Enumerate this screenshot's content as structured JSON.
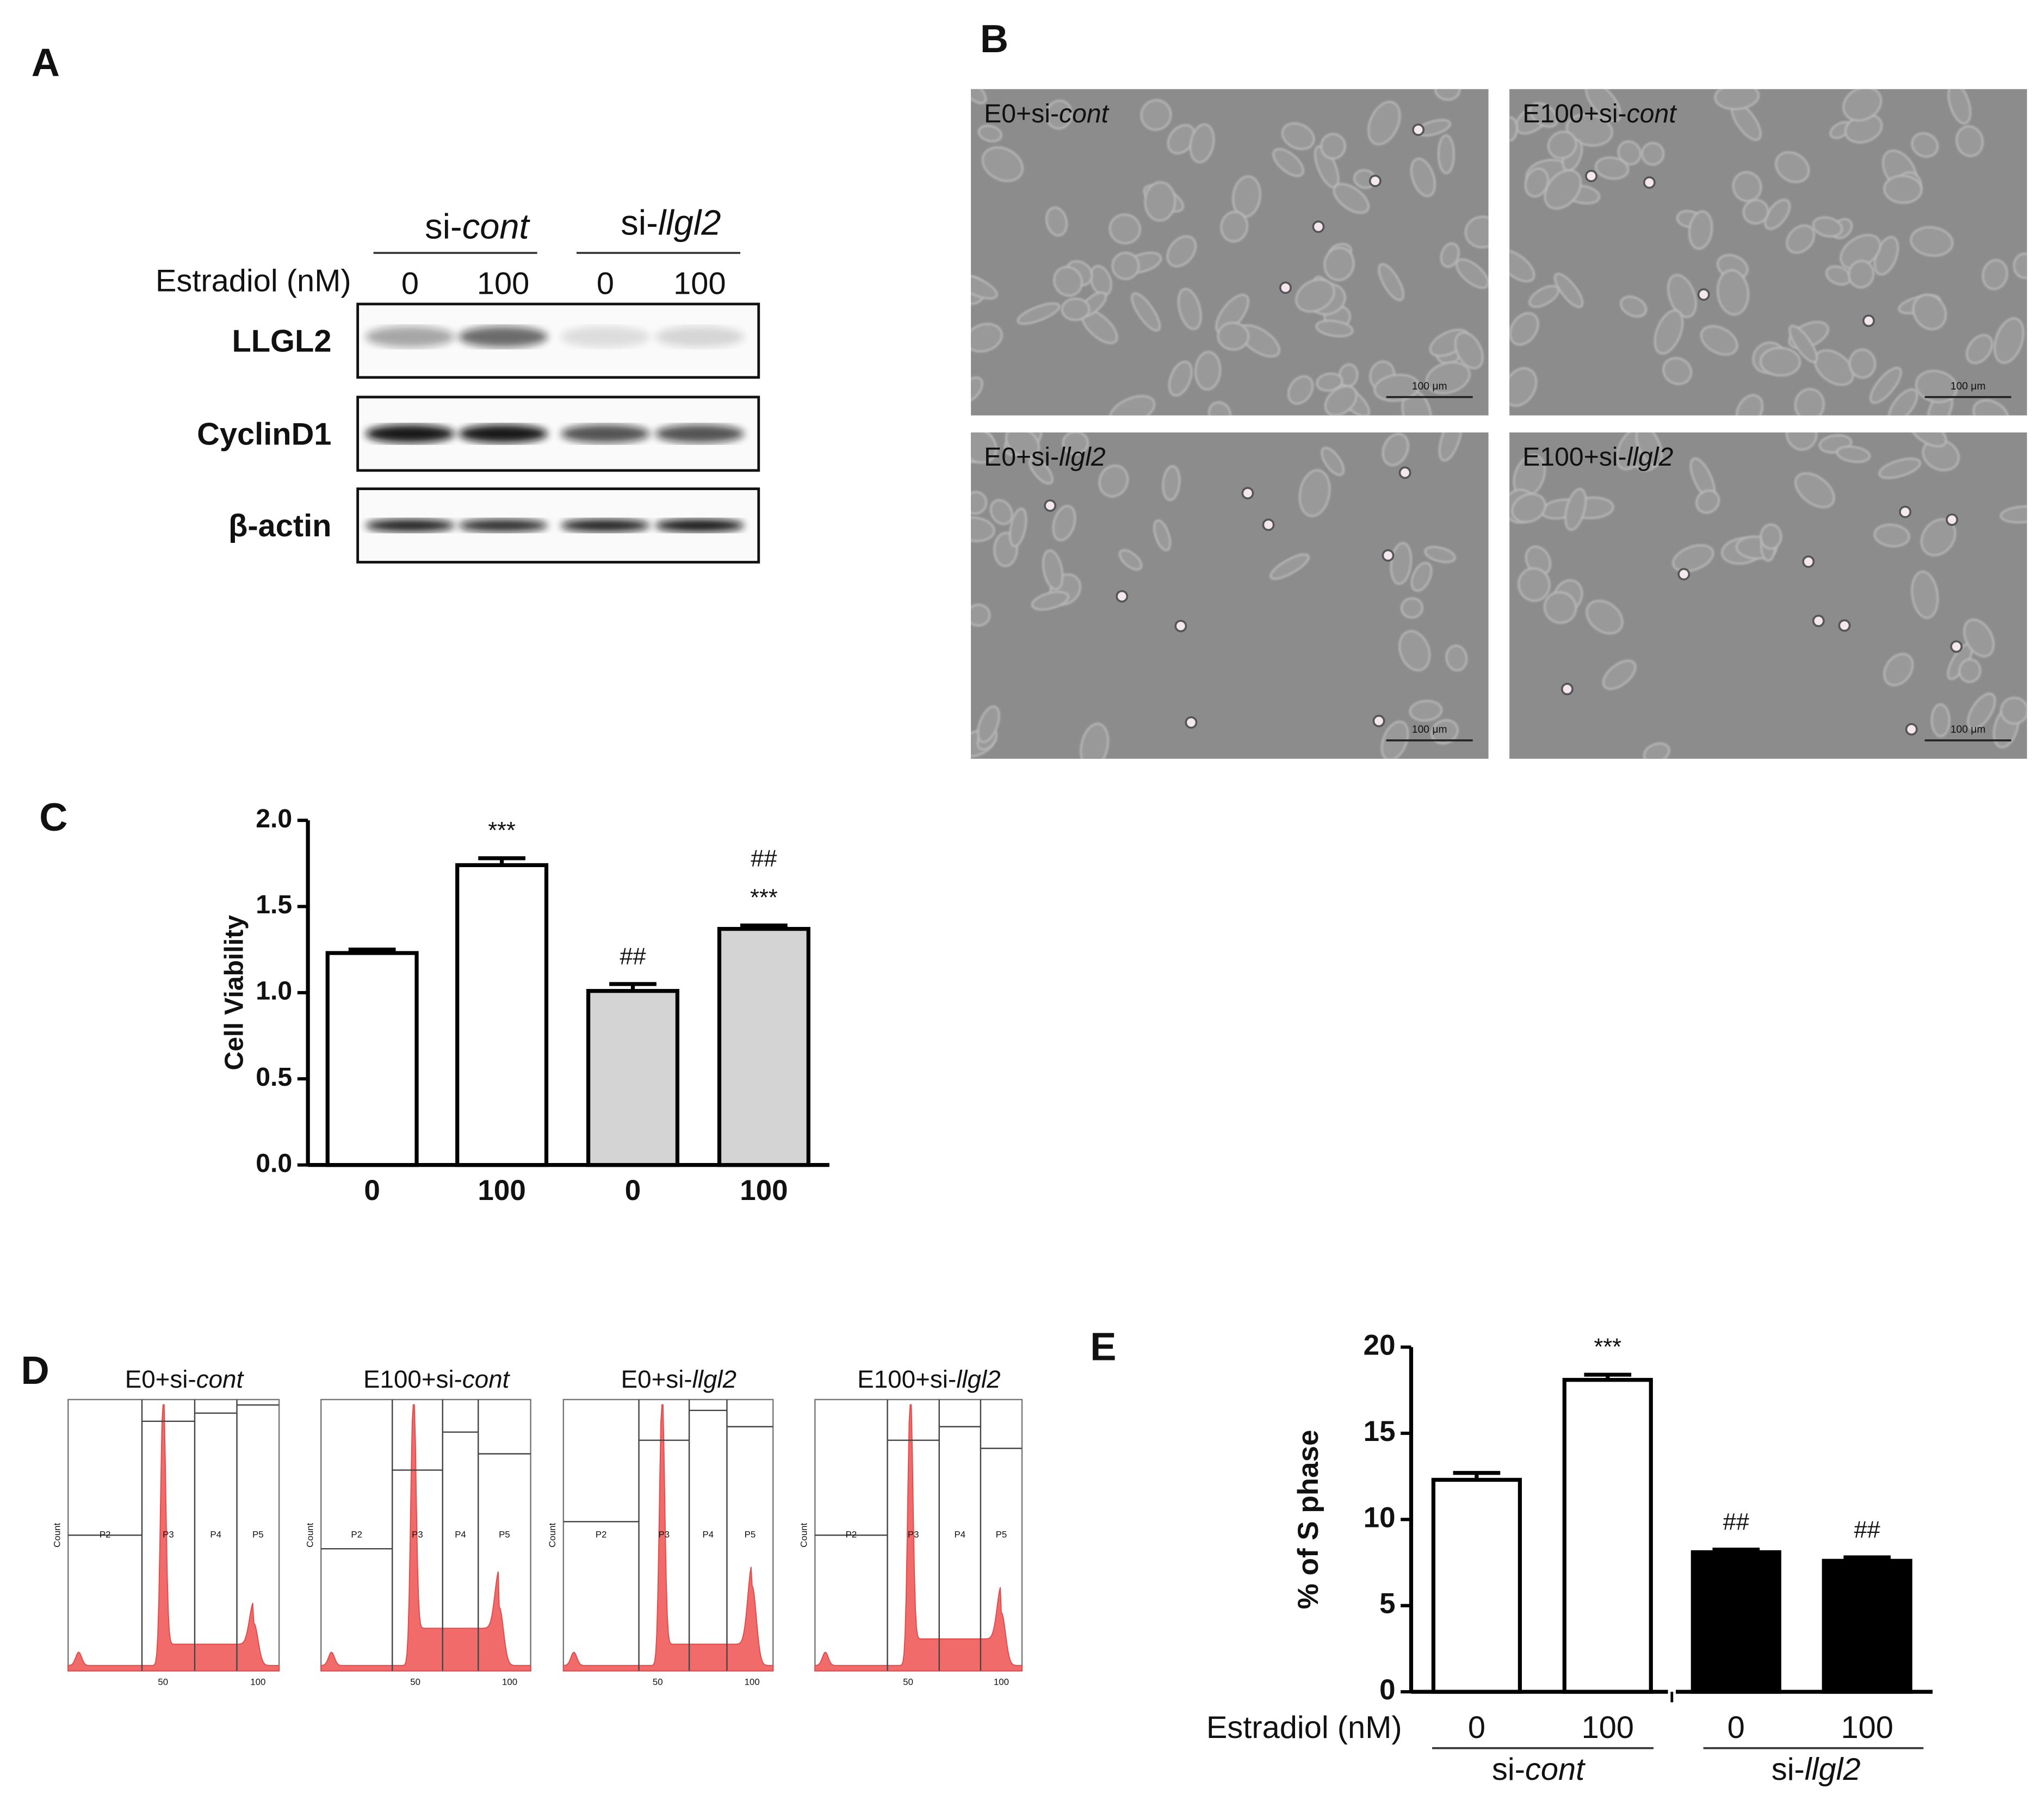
{
  "panel_labels": [
    "A",
    "B",
    "C",
    "D",
    "E"
  ],
  "conditions": [
    {
      "text": "E0+si-",
      "italic": "cont"
    },
    {
      "text": "E100+si-",
      "italic": "cont"
    },
    {
      "text": "E0+si-",
      "italic": "llgl2"
    },
    {
      "text": "E100+si-",
      "italic": "llgl2"
    }
  ],
  "groups": [
    {
      "text": "si-",
      "italic": "cont"
    },
    {
      "text": "si-",
      "italic": "llgl2"
    }
  ],
  "western_blot": {
    "treatment_label": "Estradiol (nM)",
    "doses": [
      "0",
      "100",
      "0",
      "100"
    ],
    "rows": [
      "LLGL2",
      "CyclinD1",
      "β-actin"
    ]
  },
  "scale_bar": "100 μm",
  "flow": {
    "gates": [
      "P2",
      "P3",
      "P4",
      "P5"
    ],
    "y_label": "Count",
    "x_ticks": [
      "50",
      "100"
    ]
  },
  "chart_data": [
    {
      "type": "bar",
      "y_label": "Cell Viability",
      "categories": [
        "0",
        "100",
        "0",
        "100"
      ],
      "values": [
        1.23,
        1.74,
        1.01,
        1.37
      ],
      "errors": [
        0.02,
        0.04,
        0.04,
        0.02
      ],
      "colors": [
        "#ffffff",
        "#ffffff",
        "#d4d4d4",
        "#d4d4d4"
      ],
      "edge_color": "#000000",
      "ylim": [
        0,
        2
      ],
      "yticks": [
        {
          "value": 0,
          "label": "0.0"
        },
        {
          "value": 0.5,
          "label": "0.5"
        },
        {
          "value": 1,
          "label": "1.0"
        },
        {
          "value": 1.5,
          "label": "1.5"
        },
        {
          "value": 2,
          "label": "2.0"
        }
      ],
      "annotations": [
        [],
        [
          "***"
        ],
        [
          "##"
        ],
        [
          "***",
          "##"
        ]
      ]
    },
    {
      "type": "bar",
      "y_label": "% of S phase",
      "x_label": "Estradiol (nM)",
      "categories": [
        "0",
        "100",
        "0",
        "100"
      ],
      "values": [
        12.3,
        18.1,
        8.1,
        7.6
      ],
      "errors": [
        0.4,
        0.3,
        0.15,
        0.2
      ],
      "colors": [
        "#ffffff",
        "#ffffff",
        "#000000",
        "#000000"
      ],
      "edge_color": "#000000",
      "ylim": [
        0,
        20
      ],
      "yticks": [
        0,
        5,
        10,
        15,
        20
      ],
      "annotations": [
        [],
        [
          "***"
        ],
        [
          "##"
        ],
        [
          "##"
        ]
      ]
    }
  ]
}
